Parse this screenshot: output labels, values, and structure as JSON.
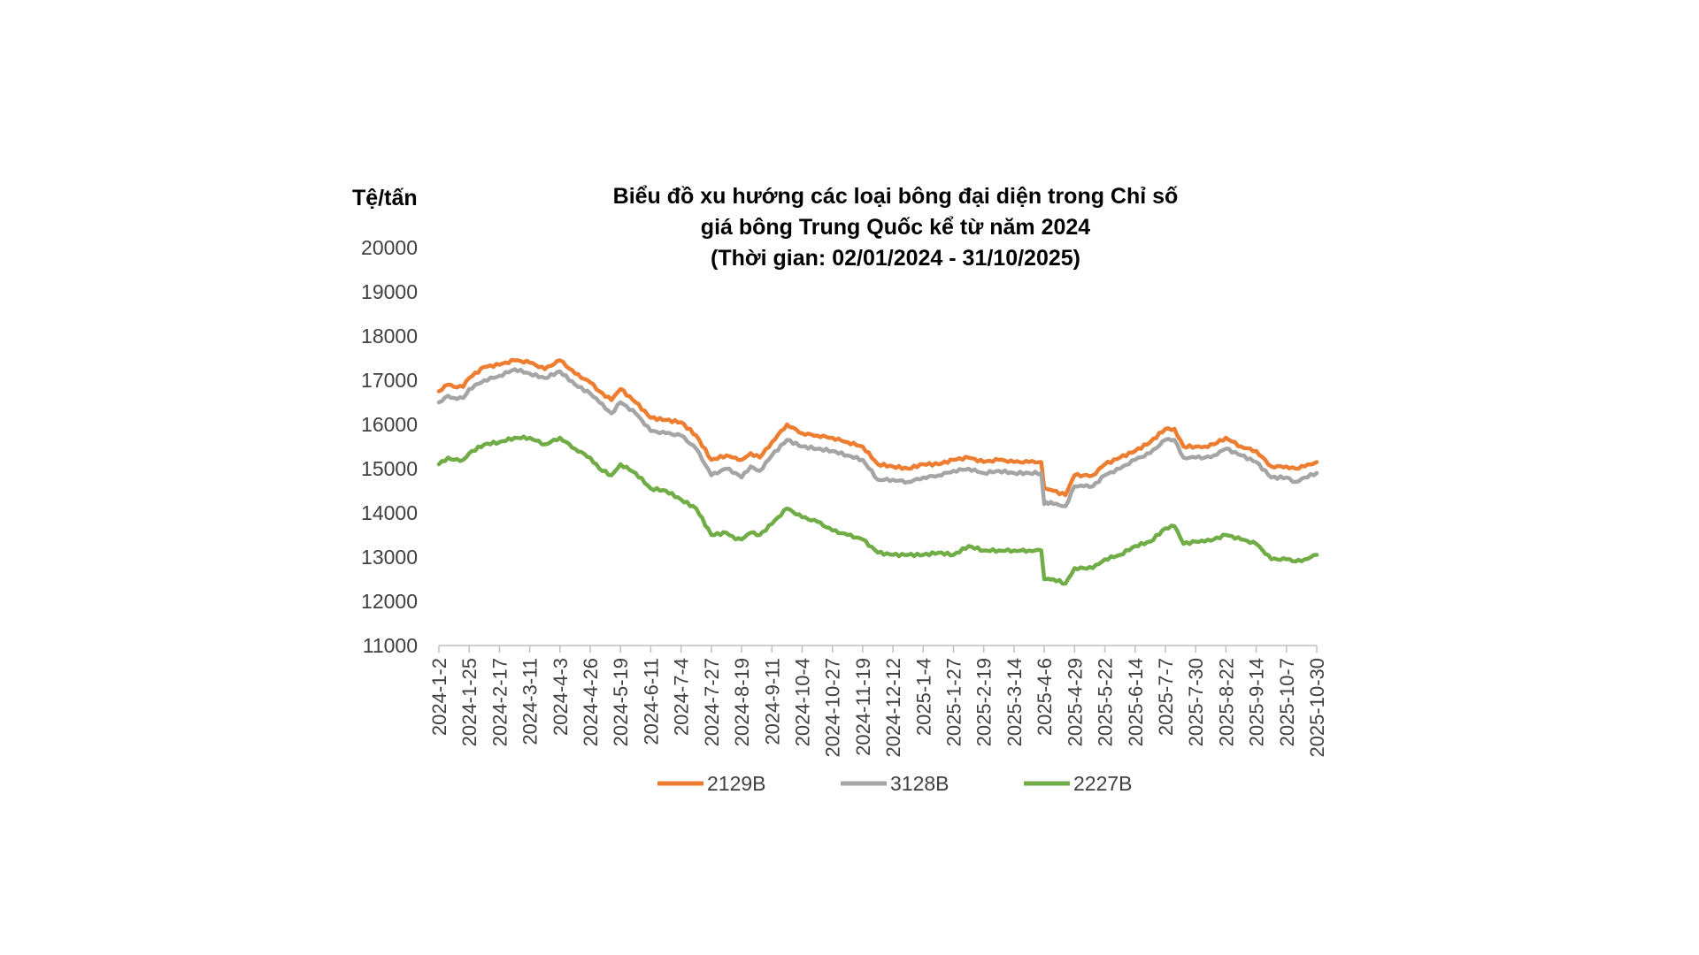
{
  "colors": {
    "s2129B": "#ED7D31",
    "s3128B": "#A5A5A5",
    "s2227B": "#70AD47",
    "axis": "#BFBFBF",
    "text": "#404040"
  },
  "chart_data": {
    "type": "line",
    "title_lines": [
      "Biểu đồ xu hướng các loại bông đại diện trong Chỉ số",
      "giá bông Trung Quốc kể từ năm 2024",
      "(Thời gian: 02/01/2024 - 31/10/2025)"
    ],
    "ylabel": "Tệ/tấn",
    "xlabel": "",
    "ylim": [
      11000,
      20000
    ],
    "yticks": [
      11000,
      12000,
      13000,
      14000,
      15000,
      16000,
      17000,
      18000,
      19000,
      20000
    ],
    "grid": false,
    "legend_position": "bottom",
    "x_tick_labels": [
      "2024-1-2",
      "2024-1-25",
      "2024-2-17",
      "2024-3-11",
      "2024-4-3",
      "2024-4-26",
      "2024-5-19",
      "2024-6-11",
      "2024-7-4",
      "2024-7-27",
      "2024-8-19",
      "2024-9-11",
      "2024-10-4",
      "2024-10-27",
      "2024-11-19",
      "2024-12-12",
      "2025-1-4",
      "2025-1-27",
      "2025-2-19",
      "2025-3-14",
      "2025-4-6",
      "2025-4-29",
      "2025-5-22",
      "2025-6-14",
      "2025-7-7",
      "2025-7-30",
      "2025-8-22",
      "2025-9-14",
      "2025-10-7",
      "2025-10-30"
    ],
    "series": [
      {
        "name": "2129B",
        "color_key": "s2129B",
        "x": [
          0,
          0.3,
          0.5,
          0.8,
          1.0,
          1.5,
          2.0,
          2.5,
          3.0,
          3.5,
          4.0,
          4.5,
          5.0,
          5.3,
          5.7,
          6.0,
          6.5,
          7.0,
          7.5,
          8.0,
          8.5,
          9.0,
          9.5,
          9.8,
          10.0,
          10.3,
          10.6,
          11.0,
          11.5,
          12.0,
          12.5,
          13.0,
          13.5,
          14.0,
          14.5,
          15.0,
          15.5,
          16.0,
          16.5,
          17.0,
          17.5,
          18.0,
          18.5,
          19.0,
          19.5,
          19.9,
          20.0,
          20.05,
          20.3,
          20.7,
          21.0,
          21.3,
          21.6,
          22.0,
          22.5,
          23.0,
          23.5,
          24.0,
          24.3,
          24.6,
          25.0,
          25.3,
          25.6,
          26.0,
          26.5,
          27.0,
          27.5,
          28.0,
          28.3,
          28.6,
          29.0
        ],
        "values": [
          16750,
          16900,
          16850,
          16850,
          17050,
          17300,
          17350,
          17450,
          17400,
          17250,
          17450,
          17150,
          16950,
          16750,
          16550,
          16800,
          16500,
          16150,
          16100,
          16050,
          15750,
          15200,
          15300,
          15250,
          15200,
          15350,
          15250,
          15600,
          16000,
          15800,
          15750,
          15700,
          15600,
          15500,
          15100,
          15050,
          15000,
          15100,
          15100,
          15200,
          15250,
          15150,
          15200,
          15150,
          15150,
          15150,
          14550,
          14550,
          14500,
          14400,
          14850,
          14850,
          14850,
          15100,
          15250,
          15400,
          15600,
          15900,
          15900,
          15500,
          15500,
          15500,
          15550,
          15700,
          15500,
          15400,
          15050,
          15050,
          15000,
          15050,
          15150
        ]
      },
      {
        "name": "3128B",
        "color_key": "s3128B",
        "x": [
          0,
          0.3,
          0.5,
          0.8,
          1.0,
          1.5,
          2.0,
          2.5,
          3.0,
          3.5,
          4.0,
          4.5,
          5.0,
          5.3,
          5.7,
          6.0,
          6.5,
          7.0,
          7.5,
          8.0,
          8.5,
          9.0,
          9.5,
          9.8,
          10.0,
          10.3,
          10.6,
          11.0,
          11.5,
          12.0,
          12.5,
          13.0,
          13.5,
          14.0,
          14.5,
          15.0,
          15.5,
          16.0,
          16.5,
          17.0,
          17.5,
          18.0,
          18.5,
          19.0,
          19.5,
          19.9,
          20.0,
          20.05,
          20.3,
          20.7,
          21.0,
          21.3,
          21.6,
          22.0,
          22.5,
          23.0,
          23.5,
          24.0,
          24.3,
          24.6,
          25.0,
          25.3,
          25.6,
          26.0,
          26.5,
          27.0,
          27.5,
          28.0,
          28.3,
          28.6,
          29.0
        ],
        "values": [
          16500,
          16650,
          16600,
          16600,
          16800,
          17000,
          17100,
          17250,
          17150,
          17050,
          17200,
          16900,
          16700,
          16500,
          16250,
          16500,
          16250,
          15850,
          15800,
          15750,
          15450,
          14850,
          15000,
          14900,
          14800,
          15050,
          14950,
          15300,
          15650,
          15500,
          15450,
          15400,
          15300,
          15200,
          14750,
          14750,
          14700,
          14800,
          14850,
          14950,
          15000,
          14900,
          14950,
          14900,
          14900,
          14900,
          14200,
          14250,
          14200,
          14150,
          14600,
          14600,
          14600,
          14850,
          15000,
          15200,
          15350,
          15650,
          15650,
          15250,
          15250,
          15250,
          15300,
          15450,
          15300,
          15150,
          14800,
          14800,
          14700,
          14800,
          14900
        ]
      },
      {
        "name": "2227B",
        "color_key": "s2227B",
        "x": [
          0,
          0.3,
          0.5,
          0.8,
          1.0,
          1.5,
          2.0,
          2.5,
          3.0,
          3.5,
          4.0,
          4.5,
          5.0,
          5.3,
          5.7,
          6.0,
          6.5,
          7.0,
          7.5,
          8.0,
          8.5,
          9.0,
          9.5,
          9.8,
          10.0,
          10.3,
          10.6,
          11.0,
          11.5,
          12.0,
          12.5,
          13.0,
          13.5,
          14.0,
          14.5,
          15.0,
          15.5,
          16.0,
          16.5,
          17.0,
          17.5,
          18.0,
          18.5,
          19.0,
          19.5,
          19.9,
          20.0,
          20.05,
          20.3,
          20.7,
          21.0,
          21.3,
          21.6,
          22.0,
          22.5,
          23.0,
          23.5,
          24.0,
          24.3,
          24.6,
          25.0,
          25.3,
          25.6,
          26.0,
          26.5,
          27.0,
          27.5,
          28.0,
          28.3,
          28.6,
          29.0
        ],
        "values": [
          15100,
          15250,
          15200,
          15200,
          15350,
          15550,
          15600,
          15700,
          15700,
          15550,
          15700,
          15450,
          15250,
          15000,
          14850,
          15100,
          14900,
          14550,
          14500,
          14300,
          14100,
          13500,
          13550,
          13400,
          13400,
          13550,
          13500,
          13750,
          14100,
          13900,
          13800,
          13600,
          13500,
          13400,
          13100,
          13050,
          13050,
          13050,
          13100,
          13050,
          13250,
          13150,
          13150,
          13150,
          13150,
          13150,
          12500,
          12500,
          12500,
          12400,
          12750,
          12750,
          12750,
          12950,
          13050,
          13250,
          13350,
          13650,
          13700,
          13300,
          13350,
          13350,
          13400,
          13500,
          13400,
          13300,
          12950,
          12950,
          12900,
          12950,
          13050
        ]
      }
    ]
  }
}
